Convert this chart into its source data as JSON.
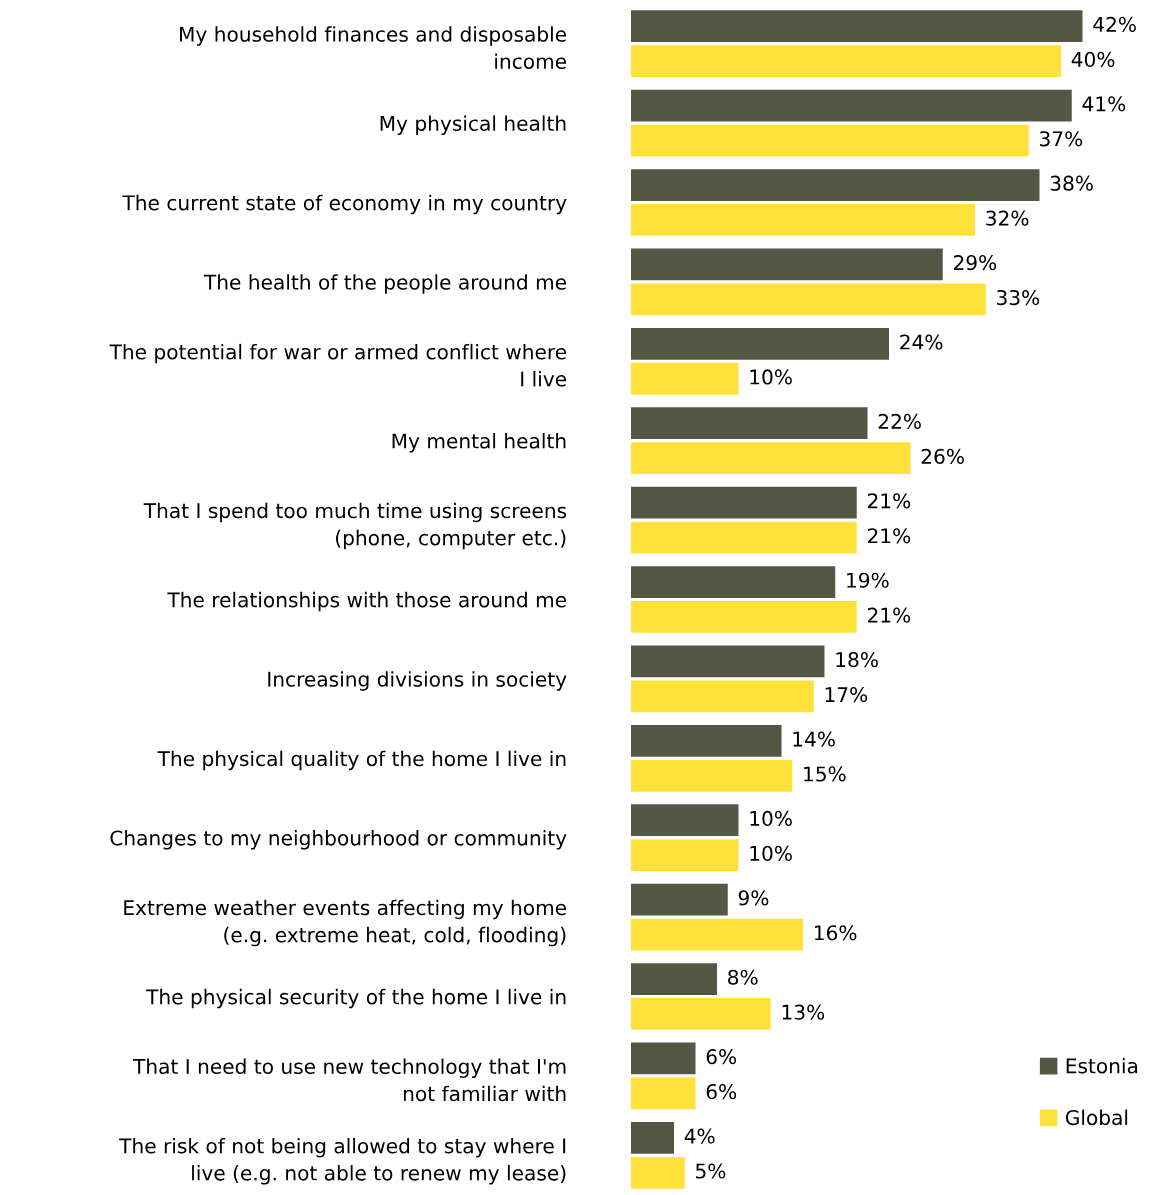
{
  "chart_data": {
    "type": "bar",
    "orientation": "horizontal",
    "legend": "bottom right",
    "grid": false,
    "categories": [
      "My household finances and disposable\nincome",
      "My physical health",
      "The current state of economy in my country",
      "The health of the people around me",
      "The potential for war or armed conflict where\nI live",
      "My mental health",
      "That I spend too much time using screens\n(phone, computer etc.)",
      "The relationships with those around me",
      "Increasing divisions in society",
      "The physical quality of the home I live in",
      "Changes to my neighbourhood or community",
      "Extreme weather events affecting my home\n(e.g. extreme heat, cold, flooding)",
      "The physical security of the home I live in",
      "That I need to use new technology that I'm\nnot familiar with",
      "The risk of not being allowed to stay where I\nlive (e.g. not able to renew my lease)"
    ],
    "series": [
      {
        "name": "Estonia",
        "color": "#545744",
        "values": [
          42,
          41,
          38,
          29,
          24,
          22,
          21,
          19,
          18,
          14,
          10,
          9,
          8,
          6,
          4
        ],
        "value_labels": [
          "42%",
          "41%",
          "38%",
          "29%",
          "24%",
          "22%",
          "21%",
          "19%",
          "18%",
          "14%",
          "10%",
          "9%",
          "8%",
          "6%",
          "4%"
        ]
      },
      {
        "name": "Global",
        "color": "#ffe13a",
        "values": [
          40,
          37,
          32,
          33,
          10,
          26,
          21,
          21,
          17,
          15,
          10,
          16,
          13,
          6,
          5
        ],
        "value_labels": [
          "40%",
          "37%",
          "32%",
          "33%",
          "10%",
          "26%",
          "21%",
          "21%",
          "17%",
          "15%",
          "10%",
          "16%",
          "13%",
          "6%",
          "5%"
        ]
      }
    ]
  }
}
